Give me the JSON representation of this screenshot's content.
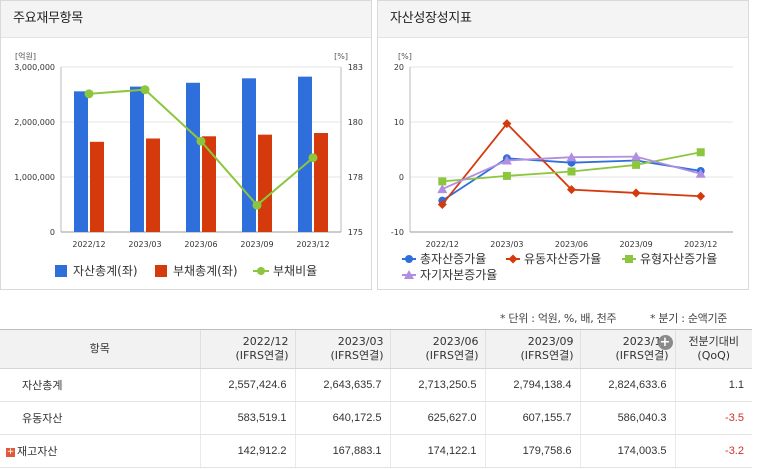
{
  "left_panel": {
    "title": "주요재무항목"
  },
  "right_panel": {
    "title": "자산성장성지표"
  },
  "notes": {
    "unit": "* 단위 : 억원, %, 배, 천주",
    "period": "* 분기 : 순액기준"
  },
  "table": {
    "header_item": "항목",
    "columns": [
      {
        "line1": "2022/12",
        "line2": "(IFRS연결)"
      },
      {
        "line1": "2023/03",
        "line2": "(IFRS연결)"
      },
      {
        "line1": "2023/06",
        "line2": "(IFRS연결)"
      },
      {
        "line1": "2023/09",
        "line2": "(IFRS연결)"
      },
      {
        "line1": "2023/12",
        "line2": "(IFRS연결)"
      },
      {
        "line1": "전분기대비",
        "line2": "(QoQ)"
      }
    ],
    "rows": [
      {
        "label": "자산총계",
        "values": [
          "2,557,424.6",
          "2,643,635.7",
          "2,713,250.5",
          "2,794,138.4",
          "2,824,633.6",
          "1.1"
        ]
      },
      {
        "label": "유동자산",
        "values": [
          "583,519.1",
          "640,172.5",
          "625,627.0",
          "607,155.7",
          "586,040.3",
          "-3.5"
        ]
      },
      {
        "label": "재고자산",
        "values": [
          "142,912.2",
          "167,883.1",
          "174,122.1",
          "179,758.6",
          "174,003.5",
          "-3.2"
        ]
      }
    ]
  },
  "chart_data": [
    {
      "type": "bar",
      "categories": [
        "2022/12",
        "2023/03",
        "2023/06",
        "2023/09",
        "2023/12"
      ],
      "y_unit_label": "[억원]",
      "y2_unit_label": "[%]",
      "ylim": [
        0,
        3000000
      ],
      "yticks": [
        "0",
        "1,000,000",
        "2,000,000",
        "3,000,000"
      ],
      "y2lim": [
        175,
        183
      ],
      "y2ticks": [
        "175",
        "178",
        "180",
        "183"
      ],
      "series": [
        {
          "name": "자산총계(좌)",
          "type": "bar",
          "axis": "left",
          "color": "#2e6fdc",
          "values": [
            2557424.6,
            2643635.7,
            2713250.5,
            2794138.4,
            2824633.6
          ]
        },
        {
          "name": "부채총계(좌)",
          "type": "bar",
          "axis": "left",
          "color": "#d43a0c",
          "values": [
            1640000,
            1700000,
            1740000,
            1770000,
            1800000
          ]
        },
        {
          "name": "부채비율",
          "type": "line",
          "axis": "right",
          "color": "#8cc63f",
          "values": [
            181.7,
            181.9,
            179.4,
            176.3,
            178.6
          ]
        }
      ],
      "legend_position": "bottom",
      "grid": true
    },
    {
      "type": "line",
      "categories": [
        "2022/12",
        "2023/03",
        "2023/06",
        "2023/09",
        "2023/12"
      ],
      "y_unit_label": "[%]",
      "ylim": [
        -10,
        20
      ],
      "yticks": [
        "-10",
        "0",
        "10",
        "20"
      ],
      "series": [
        {
          "name": "총자산증가율",
          "color": "#2e6fdc",
          "marker": "circle",
          "values": [
            -4.3,
            3.4,
            2.6,
            3.0,
            1.1
          ]
        },
        {
          "name": "유동자산증가율",
          "color": "#d43a0c",
          "marker": "diamond",
          "values": [
            -5.0,
            9.7,
            -2.3,
            -2.9,
            -3.5
          ]
        },
        {
          "name": "유형자산증가율",
          "color": "#8cc63f",
          "marker": "square",
          "values": [
            -0.8,
            0.2,
            1.0,
            2.2,
            4.5
          ]
        },
        {
          "name": "자기자본증가율",
          "color": "#b08ee0",
          "marker": "triangle",
          "values": [
            -2.2,
            3.0,
            3.6,
            3.7,
            0.6
          ]
        }
      ],
      "legend_position": "bottom",
      "grid": true
    }
  ]
}
